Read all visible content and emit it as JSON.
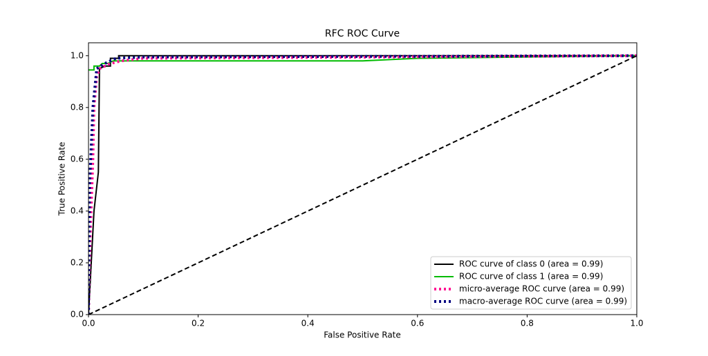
{
  "chart_data": {
    "type": "line",
    "title": "RFC ROC Curve",
    "x_label": "False Positive Rate",
    "y_label": "True Positive Rate",
    "xlim": [
      0,
      1
    ],
    "ylim": [
      0,
      1.05
    ],
    "xticks": [
      {
        "value": 0,
        "label": "0.0"
      },
      0.2,
      0.4,
      0.6,
      0.8,
      {
        "value": 1,
        "label": "1.0"
      }
    ],
    "yticks": [
      {
        "value": 0,
        "label": "0.0"
      },
      0.2,
      0.4,
      0.6,
      0.8,
      {
        "value": 1,
        "label": "1.0"
      }
    ],
    "legend": "lower right",
    "grid": false,
    "series": [
      {
        "name": "ROC curve of class 0 (area = 0.99)",
        "color": "#000000",
        "style": "solid",
        "x": [
          0,
          0.005,
          0.01,
          0.018,
          0.02,
          0.03,
          0.04,
          0.04,
          0.055,
          0.055,
          1
        ],
        "values": [
          0,
          0.2,
          0.4,
          0.55,
          0.95,
          0.96,
          0.96,
          0.99,
          0.99,
          1,
          1
        ]
      },
      {
        "name": "ROC curve of class 1 (area = 0.99)",
        "color": "#00bb00",
        "style": "solid",
        "x": [
          0,
          0.01,
          0.01,
          0.02,
          0.025,
          0.035,
          0.045,
          0.5,
          0.6,
          1
        ],
        "values": [
          0.945,
          0.945,
          0.96,
          0.96,
          0.97,
          0.97,
          0.98,
          0.98,
          0.99,
          1
        ]
      },
      {
        "name": "micro-average ROC curve (area = 0.99)",
        "color": "#ff1493",
        "style": "dotted",
        "x": [
          0,
          0.003,
          0.008,
          0.01,
          0.015,
          0.02,
          0.04,
          0.06,
          0.1,
          1
        ],
        "values": [
          0,
          0.3,
          0.6,
          0.8,
          0.92,
          0.95,
          0.97,
          0.98,
          0.99,
          1
        ]
      },
      {
        "name": "macro-average ROC curve (area = 0.99)",
        "color": "#000080",
        "style": "dotted",
        "x": [
          0,
          0.002,
          0.008,
          0.015,
          0.03,
          0.05,
          0.1,
          1
        ],
        "values": [
          0,
          0.5,
          0.8,
          0.95,
          0.97,
          0.99,
          0.995,
          1
        ]
      },
      {
        "color": "#000000",
        "style": "dashed",
        "x": [
          0,
          1
        ],
        "values": [
          0,
          1
        ]
      }
    ]
  }
}
